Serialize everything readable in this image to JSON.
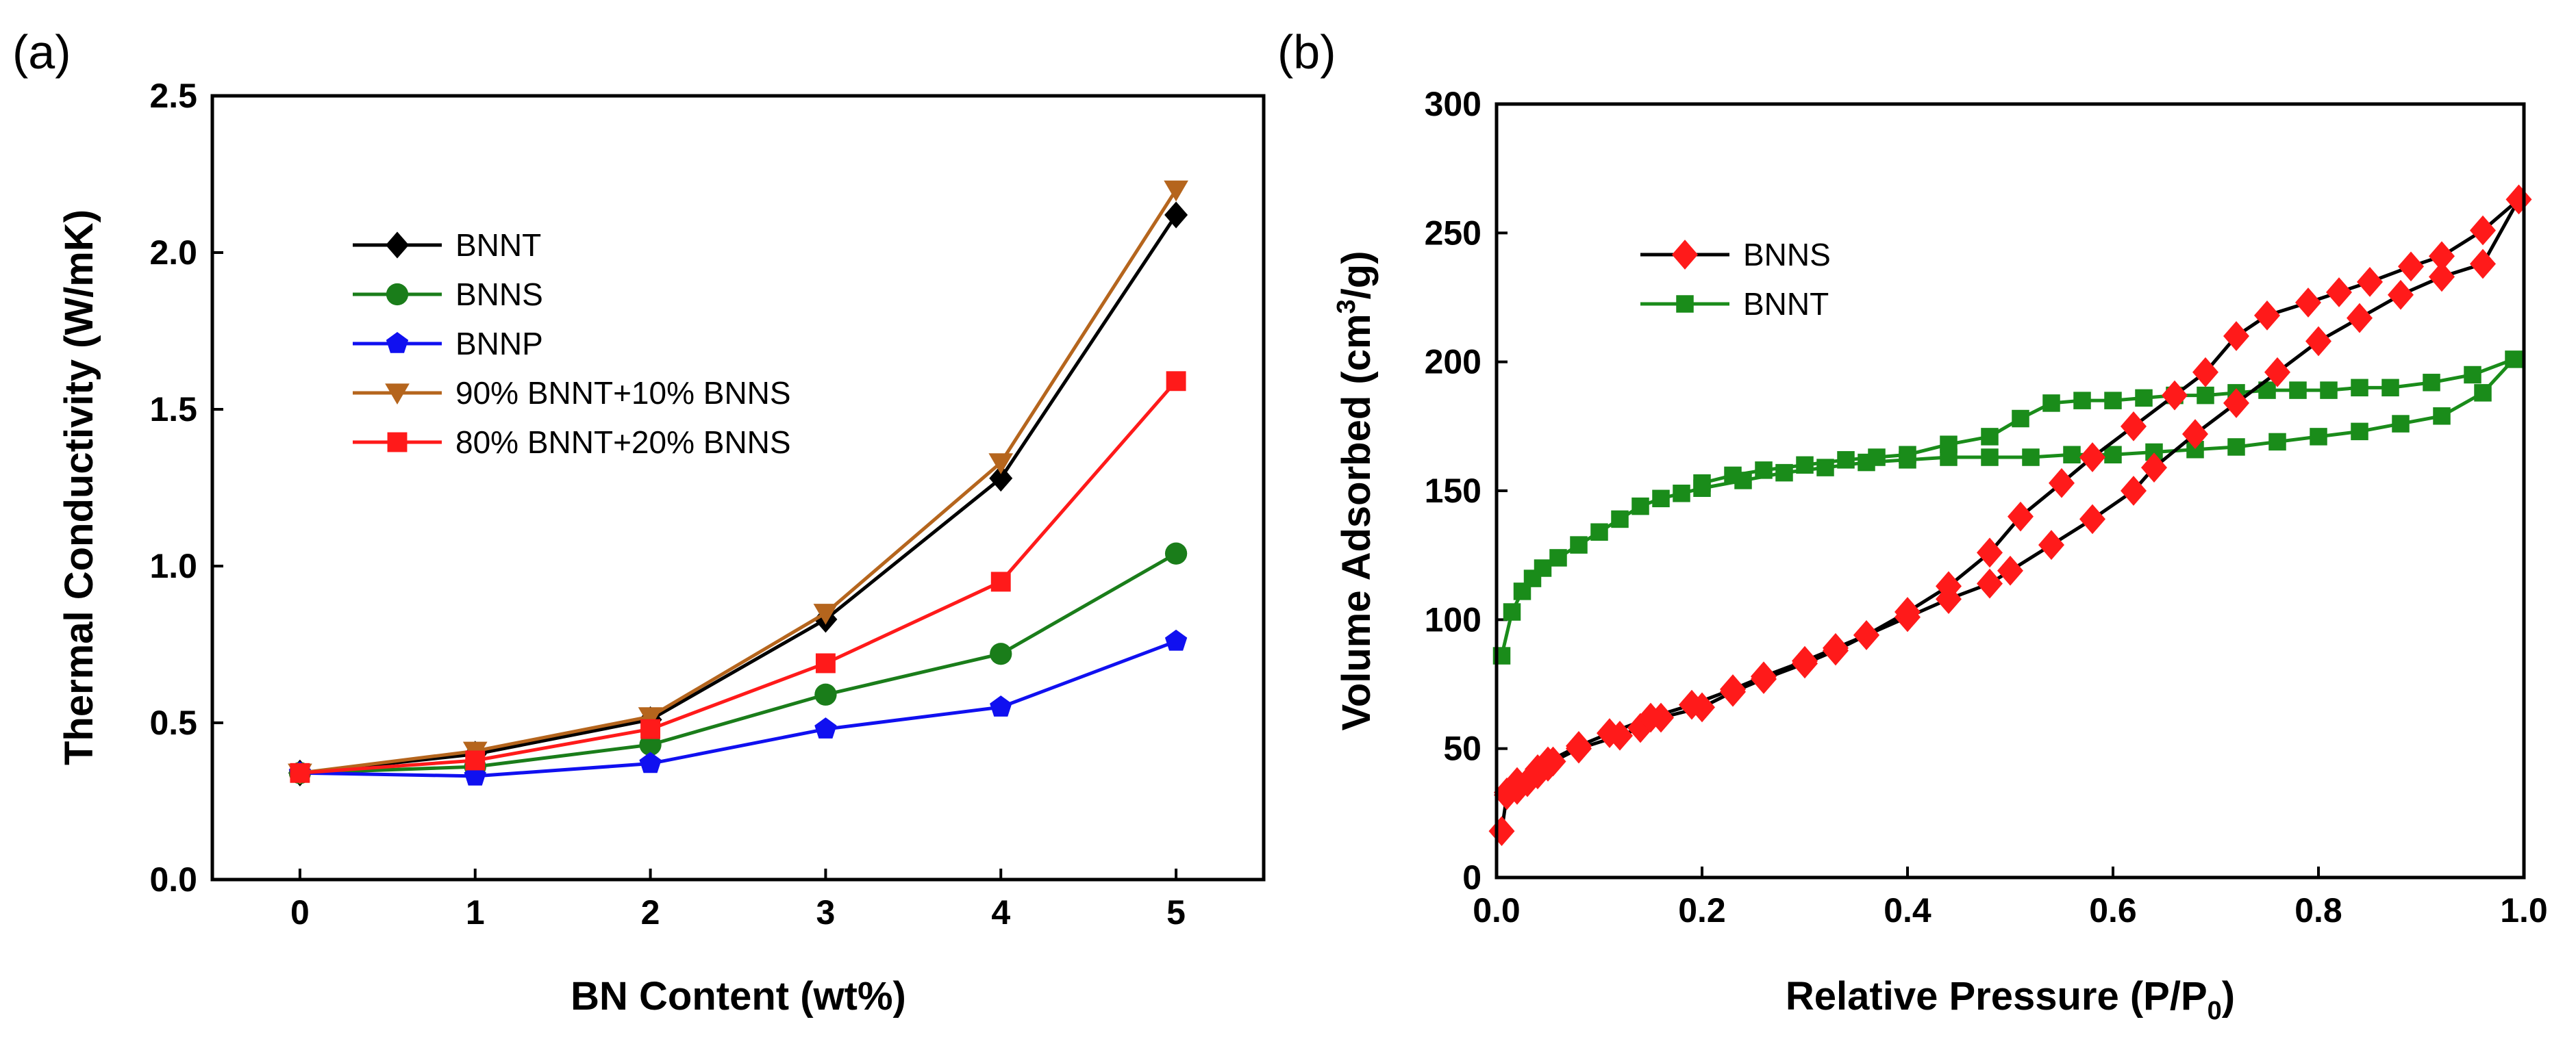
{
  "chart_data": [
    {
      "panel_label": "(a)",
      "type": "line",
      "xlabel": "BN Content (wt%)",
      "ylabel": "Thermal Conductivity (W/mK)",
      "xlim": [
        -0.5,
        5.5
      ],
      "ylim": [
        0,
        2.5
      ],
      "xticks": [
        0,
        1,
        2,
        3,
        4,
        5
      ],
      "yticks": [
        0.0,
        0.5,
        1.0,
        1.5,
        2.0,
        2.5
      ],
      "x": [
        0,
        1,
        2,
        3,
        4,
        5
      ],
      "legend_position": "upper-left",
      "series": [
        {
          "name": "BNNT",
          "color": "#000000",
          "marker": "diamond",
          "values": [
            0.34,
            0.4,
            0.51,
            0.83,
            1.28,
            2.12
          ]
        },
        {
          "name": "BNNS",
          "color": "#1a7d1a",
          "marker": "circle",
          "values": [
            0.34,
            0.36,
            0.43,
            0.59,
            0.72,
            1.04
          ]
        },
        {
          "name": "BNNP",
          "color": "#1010f0",
          "marker": "pentagon",
          "values": [
            0.34,
            0.33,
            0.37,
            0.48,
            0.55,
            0.76
          ]
        },
        {
          "name": "90% BNNT+10% BNNS",
          "color": "#b5651d",
          "marker": "triangle-down",
          "values": [
            0.34,
            0.41,
            0.52,
            0.85,
            1.33,
            2.2
          ]
        },
        {
          "name": "80% BNNT+20% BNNS",
          "color": "#ff1a1a",
          "marker": "square",
          "values": [
            0.34,
            0.38,
            0.48,
            0.69,
            0.95,
            1.59
          ]
        }
      ]
    },
    {
      "panel_label": "(b)",
      "type": "line",
      "xlabel_main": "Relative Pressure (P/P",
      "xlabel_sub": "0",
      "xlabel_end": ")",
      "ylabel_main": "Volume Adsorbed (cm",
      "ylabel_sup": "3",
      "ylabel_end": "/g)",
      "xlim": [
        0,
        1.0
      ],
      "ylim": [
        0,
        300
      ],
      "xticks": [
        0.0,
        0.2,
        0.4,
        0.6,
        0.8,
        1.0
      ],
      "yticks": [
        0,
        50,
        100,
        150,
        200,
        250,
        300
      ],
      "legend_position": "upper-left",
      "series": [
        {
          "name": "BNNS",
          "color": "#ff1a1a",
          "line_color": "#000000",
          "marker": "diamond",
          "x": [
            0.005,
            0.01,
            0.02,
            0.03,
            0.04,
            0.05,
            0.055,
            0.08,
            0.12,
            0.14,
            0.16,
            0.2,
            0.23,
            0.26,
            0.3,
            0.33,
            0.36,
            0.4,
            0.44,
            0.48,
            0.5,
            0.54,
            0.58,
            0.62,
            0.64,
            0.68,
            0.72,
            0.76,
            0.8,
            0.84,
            0.88,
            0.92,
            0.96,
            0.995,
            0.96,
            0.92,
            0.89,
            0.85,
            0.82,
            0.79,
            0.75,
            0.72,
            0.69,
            0.66,
            0.62,
            0.58,
            0.55,
            0.51,
            0.48,
            0.44,
            0.4,
            0.36,
            0.33,
            0.3,
            0.26,
            0.23,
            0.19,
            0.15,
            0.11,
            0.08,
            0.05,
            0.04,
            0.02,
            0.01
          ],
          "y": [
            18,
            32,
            34,
            37,
            40,
            43,
            45,
            50,
            55,
            58,
            62,
            66,
            72,
            77,
            83,
            88,
            94,
            101,
            108,
            114,
            119,
            129,
            139,
            150,
            159,
            172,
            184,
            196,
            208,
            217,
            226,
            233,
            238,
            263,
            251,
            241,
            237,
            231,
            227,
            223,
            218,
            210,
            196,
            187,
            175,
            163,
            153,
            140,
            126,
            113,
            103,
            94,
            89,
            84,
            78,
            73,
            67,
            62,
            56,
            51,
            45,
            42,
            37,
            33
          ]
        },
        {
          "name": "BNNT",
          "color": "#1a8c1a",
          "line_color": "#1a8c1a",
          "marker": "square",
          "x": [
            0.005,
            0.015,
            0.025,
            0.035,
            0.045,
            0.06,
            0.08,
            0.1,
            0.12,
            0.14,
            0.16,
            0.18,
            0.2,
            0.24,
            0.28,
            0.32,
            0.36,
            0.4,
            0.44,
            0.48,
            0.52,
            0.56,
            0.6,
            0.64,
            0.68,
            0.72,
            0.76,
            0.8,
            0.84,
            0.88,
            0.92,
            0.96,
            0.99,
            0.95,
            0.91,
            0.87,
            0.84,
            0.81,
            0.78,
            0.75,
            0.72,
            0.69,
            0.66,
            0.63,
            0.6,
            0.57,
            0.54,
            0.51,
            0.48,
            0.44,
            0.4,
            0.37,
            0.34,
            0.3,
            0.26,
            0.23,
            0.2
          ],
          "y": [
            86,
            103,
            111,
            116,
            120,
            124,
            129,
            134,
            139,
            144,
            147,
            149,
            151,
            154,
            157,
            159,
            161,
            162,
            163,
            163,
            163,
            164,
            164,
            165,
            166,
            167,
            169,
            171,
            173,
            176,
            179,
            188,
            201,
            195,
            192,
            190,
            190,
            189,
            189,
            189,
            188,
            187,
            187,
            186,
            185,
            185,
            184,
            178,
            171,
            168,
            164,
            163,
            162,
            160,
            158,
            156,
            153
          ]
        }
      ]
    }
  ]
}
